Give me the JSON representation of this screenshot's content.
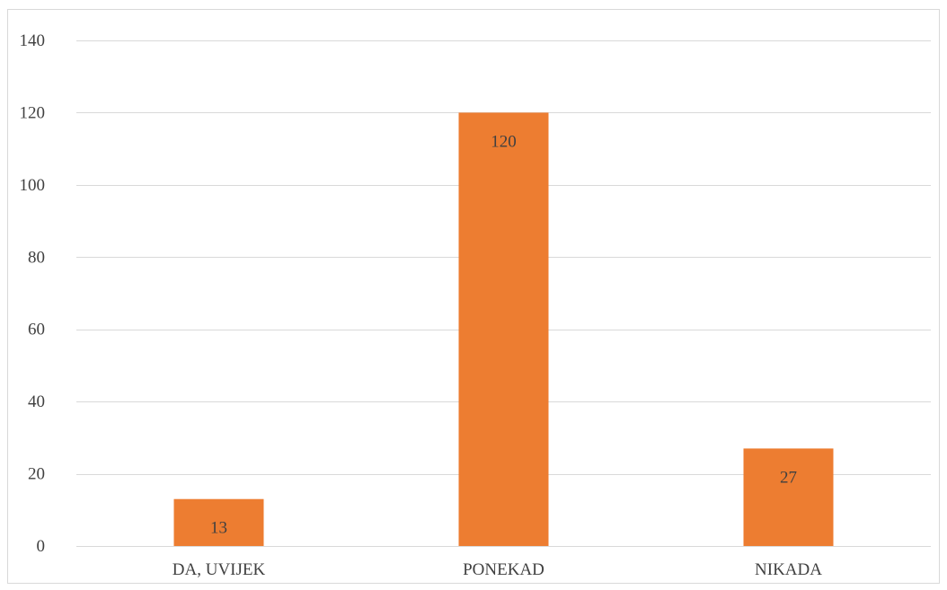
{
  "chart_data": {
    "type": "bar",
    "title": "",
    "xlabel": "",
    "ylabel": "",
    "categories": [
      "DA, UVIJEK",
      "PONEKAD",
      "NIKADA"
    ],
    "values": [
      13,
      120,
      27
    ],
    "data_labels": [
      "13",
      "120",
      "27"
    ],
    "ylim": [
      0,
      140
    ],
    "yticks": [
      0,
      20,
      40,
      60,
      80,
      100,
      120,
      140
    ],
    "ytick_labels": [
      "0",
      "20",
      "40",
      "60",
      "80",
      "100",
      "120",
      "140"
    ],
    "grid": true,
    "legend": "none",
    "colors": {
      "bar": "#ED7D31",
      "grid": "#D9D9D9",
      "text": "#404040"
    }
  }
}
